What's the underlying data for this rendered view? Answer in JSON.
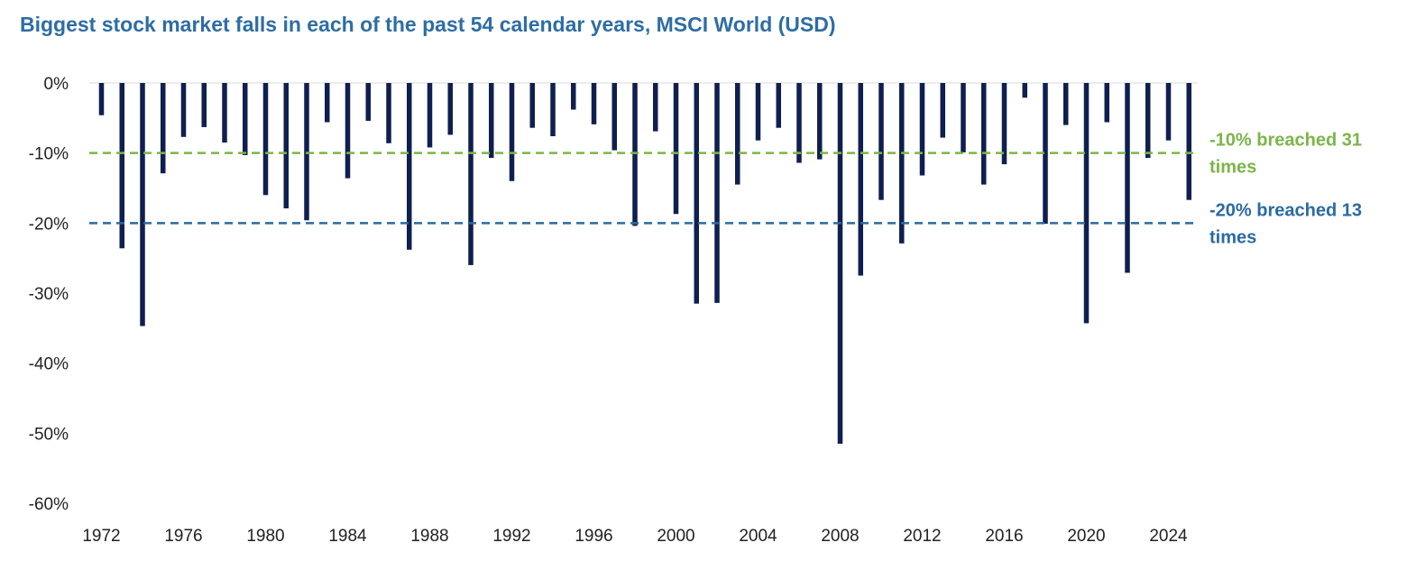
{
  "chart_data": {
    "type": "bar",
    "title": "Biggest stock market falls in each of the past 54 calendar years, MSCI World (USD)",
    "xlabel": "",
    "ylabel": "",
    "ylim": [
      -60,
      0
    ],
    "yticks": [
      0,
      -10,
      -20,
      -30,
      -40,
      -50,
      -60
    ],
    "ytick_labels": [
      "0%",
      "-10%",
      "-20%",
      "-30%",
      "-40%",
      "-50%",
      "-60%"
    ],
    "xtick_labels": [
      "1972",
      "1976",
      "1980",
      "1984",
      "1988",
      "1992",
      "1996",
      "2000",
      "2004",
      "2008",
      "2012",
      "2016",
      "2020",
      "2024"
    ],
    "categories": [
      "1972",
      "1973",
      "1974",
      "1975",
      "1976",
      "1977",
      "1978",
      "1979",
      "1980",
      "1981",
      "1982",
      "1983",
      "1984",
      "1985",
      "1986",
      "1987",
      "1988",
      "1989",
      "1990",
      "1991",
      "1992",
      "1993",
      "1994",
      "1995",
      "1996",
      "1997",
      "1998",
      "1999",
      "2000",
      "2001",
      "2002",
      "2003",
      "2004",
      "2005",
      "2006",
      "2007",
      "2008",
      "2009",
      "2010",
      "2011",
      "2012",
      "2013",
      "2014",
      "2015",
      "2016",
      "2017",
      "2018",
      "2019",
      "2020",
      "2021",
      "2022",
      "2023",
      "2024",
      "2025"
    ],
    "values": [
      -4.6,
      -23.6,
      -34.7,
      -12.9,
      -7.7,
      -6.3,
      -8.5,
      -10.3,
      -16.0,
      -17.9,
      -19.6,
      -5.6,
      -13.6,
      -5.4,
      -8.6,
      -23.8,
      -9.2,
      -7.4,
      -26.0,
      -10.7,
      -14.0,
      -6.4,
      -7.6,
      -3.8,
      -5.9,
      -9.6,
      -20.4,
      -6.9,
      -18.7,
      -31.5,
      -31.4,
      -14.5,
      -8.2,
      -6.4,
      -11.4,
      -10.9,
      -51.5,
      -27.5,
      -16.7,
      -22.9,
      -13.2,
      -7.8,
      -9.9,
      -14.5,
      -11.6,
      -2.1,
      -20.1,
      -6.0,
      -34.3,
      -5.6,
      -27.1,
      -10.7,
      -8.2,
      -16.7
    ],
    "bar_color": "#0f1f4f",
    "reference_lines": [
      {
        "value": -10,
        "label_line1": "-10% breached 31",
        "label_line2": "times",
        "color": "#7ab648"
      },
      {
        "value": -20,
        "label_line1": "-20% breached 13",
        "label_line2": "times",
        "color": "#2a6aa1"
      }
    ],
    "title_color": "#2e6da4",
    "legend": "none",
    "grid": false
  }
}
